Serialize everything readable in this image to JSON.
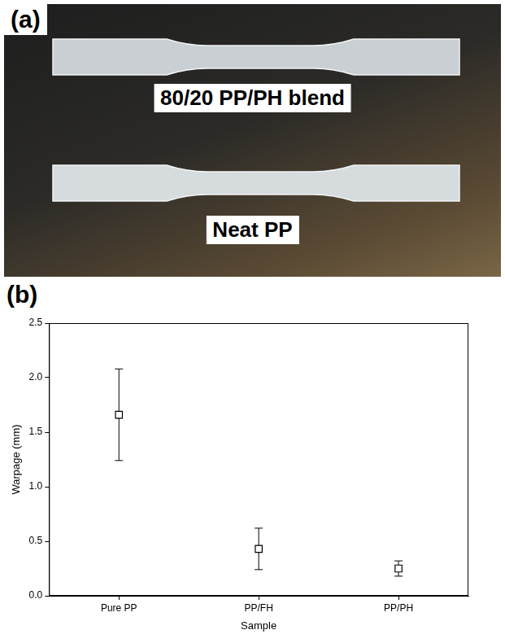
{
  "panel_a": {
    "letter": "(a)",
    "specimen_labels": [
      "80/20 PP/PH blend",
      "Neat PP"
    ]
  },
  "panel_b": {
    "letter": "(b)"
  },
  "chart_data": {
    "type": "scatter",
    "x_label": "Sample",
    "y_label": "Warpage (mm)",
    "categories": [
      "Pure PP",
      "PP/FH",
      "PP/PH"
    ],
    "values": [
      1.66,
      0.43,
      0.25
    ],
    "errors": [
      0.42,
      0.19,
      0.07
    ],
    "color": "#000000",
    "marker": "square",
    "ylim": [
      0,
      2.5
    ],
    "yticks": [
      {
        "value": 0,
        "label": "0.0"
      },
      0.5,
      {
        "value": 1,
        "label": "1.0"
      },
      1.5,
      {
        "value": 2,
        "label": "2.0"
      },
      2.5
    ],
    "grid": false
  }
}
